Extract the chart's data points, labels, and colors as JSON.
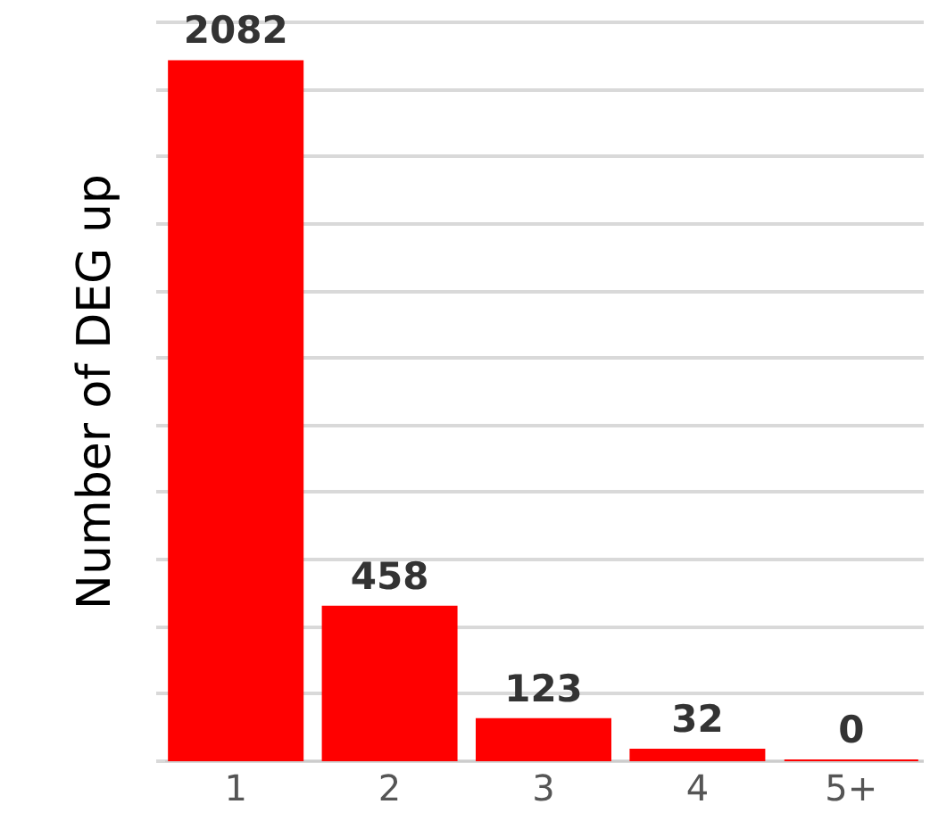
{
  "chart_data": {
    "type": "bar",
    "ylabel": "Number of DEG up",
    "categories": [
      "1",
      "2",
      "3",
      "4",
      "5+"
    ],
    "values": [
      2082,
      458,
      123,
      32,
      0
    ],
    "color": "#ff0000",
    "tick_labels": "x",
    "grid": "y",
    "data_labels": true
  }
}
